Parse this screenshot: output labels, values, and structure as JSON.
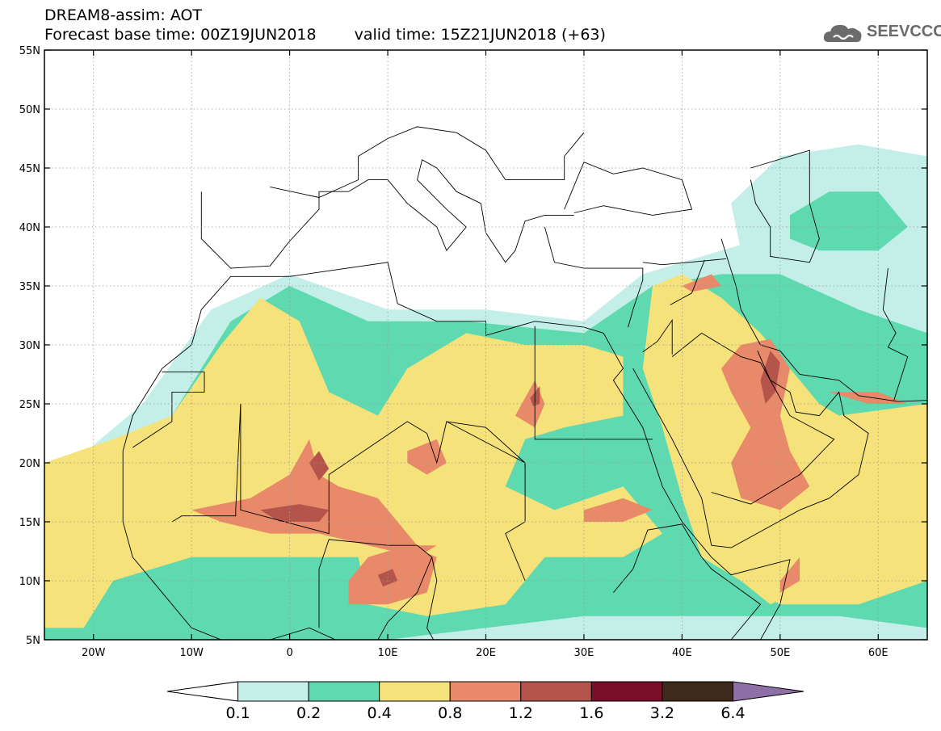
{
  "title": {
    "line1": "DREAM8-assim: AOT",
    "base": "Forecast base time: 00Z19JUN2018",
    "valid": "valid time: 15Z21JUN2018 (+63)"
  },
  "logo": {
    "text": "SEEVCCC",
    "icon": "cloud-icon",
    "color": "#6b6b6b"
  },
  "map": {
    "lon_range": [
      -25,
      65
    ],
    "lat_range": [
      5,
      55
    ],
    "lat_ticks": [
      {
        "value": 55,
        "label": "55N"
      },
      {
        "value": 50,
        "label": "50N"
      },
      {
        "value": 45,
        "label": "45N"
      },
      {
        "value": 40,
        "label": "40N"
      },
      {
        "value": 35,
        "label": "35N"
      },
      {
        "value": 30,
        "label": "30N"
      },
      {
        "value": 25,
        "label": "25N"
      },
      {
        "value": 20,
        "label": "20N"
      },
      {
        "value": 15,
        "label": "15N"
      },
      {
        "value": 10,
        "label": "10N"
      },
      {
        "value": 5,
        "label": "5N"
      }
    ],
    "lon_ticks": [
      {
        "value": -20,
        "label": "20W"
      },
      {
        "value": -10,
        "label": "10W"
      },
      {
        "value": 0,
        "label": "0"
      },
      {
        "value": 10,
        "label": "10E"
      },
      {
        "value": 20,
        "label": "20E"
      },
      {
        "value": 30,
        "label": "30E"
      },
      {
        "value": 40,
        "label": "40E"
      },
      {
        "value": 50,
        "label": "50E"
      },
      {
        "value": 60,
        "label": "60E"
      }
    ],
    "gridlines": true
  },
  "colorbar": {
    "levels": [
      "0.1",
      "0.2",
      "0.4",
      "0.8",
      "1.2",
      "1.6",
      "3.2",
      "6.4"
    ],
    "colors": [
      "#ffffff",
      "#c4efe8",
      "#5fd9b0",
      "#f5e27a",
      "#e8896a",
      "#b5544a",
      "#7a0f2a",
      "#3d2a1a",
      "#8f6fa8"
    ]
  }
}
